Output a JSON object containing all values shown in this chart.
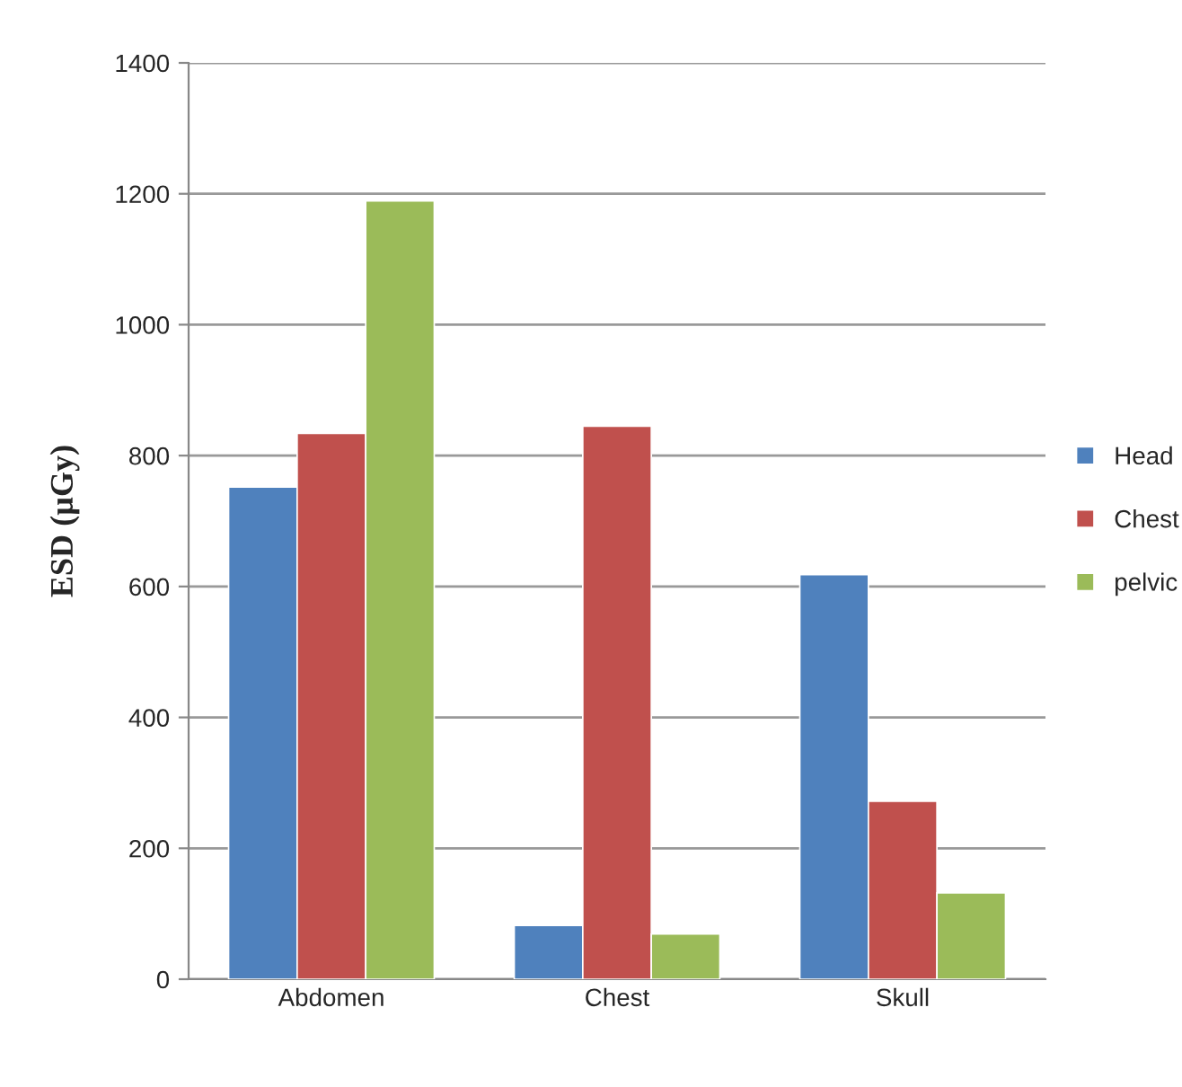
{
  "chart_data": {
    "type": "bar",
    "ylabel": "ESD (µGy)",
    "categories": [
      "Abdomen",
      "Chest",
      "Skull"
    ],
    "series": [
      {
        "name": "Head",
        "color": "#4f81bd",
        "values": [
          752,
          82,
          618
        ]
      },
      {
        "name": "Chest",
        "color": "#c0504d",
        "values": [
          834,
          845,
          272
        ]
      },
      {
        "name": "pelvic",
        "color": "#9bbb59",
        "values": [
          1189,
          69,
          132
        ]
      }
    ],
    "ylim": [
      0,
      1400
    ],
    "yticks": [
      0,
      200,
      400,
      600,
      800,
      1000,
      1200,
      1400
    ],
    "grid": "y",
    "legend": "right"
  }
}
